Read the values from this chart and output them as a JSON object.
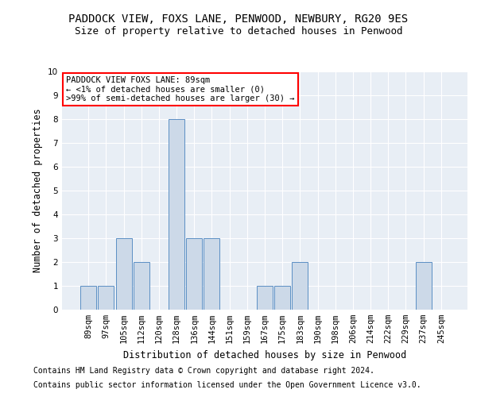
{
  "title1": "PADDOCK VIEW, FOXS LANE, PENWOOD, NEWBURY, RG20 9ES",
  "title2": "Size of property relative to detached houses in Penwood",
  "xlabel": "Distribution of detached houses by size in Penwood",
  "ylabel": "Number of detached properties",
  "footnote1": "Contains HM Land Registry data © Crown copyright and database right 2024.",
  "footnote2": "Contains public sector information licensed under the Open Government Licence v3.0.",
  "categories": [
    "89sqm",
    "97sqm",
    "105sqm",
    "112sqm",
    "120sqm",
    "128sqm",
    "136sqm",
    "144sqm",
    "151sqm",
    "159sqm",
    "167sqm",
    "175sqm",
    "183sqm",
    "190sqm",
    "198sqm",
    "206sqm",
    "214sqm",
    "222sqm",
    "229sqm",
    "237sqm",
    "245sqm"
  ],
  "values": [
    1,
    1,
    3,
    2,
    0,
    8,
    3,
    3,
    0,
    0,
    1,
    1,
    2,
    0,
    0,
    0,
    0,
    0,
    0,
    2,
    0
  ],
  "bar_color": "#ccd9e8",
  "bar_edge_color": "#5b8fc4",
  "annotation_text": "PADDOCK VIEW FOXS LANE: 89sqm\n← <1% of detached houses are smaller (0)\n>99% of semi-detached houses are larger (30) →",
  "ylim": [
    0,
    10
  ],
  "yticks": [
    0,
    1,
    2,
    3,
    4,
    5,
    6,
    7,
    8,
    9,
    10
  ],
  "background_color": "#e8eef5",
  "grid_color": "#ffffff",
  "title1_fontsize": 10,
  "title2_fontsize": 9,
  "axis_label_fontsize": 8.5,
  "tick_fontsize": 7.5,
  "footnote_fontsize": 7
}
